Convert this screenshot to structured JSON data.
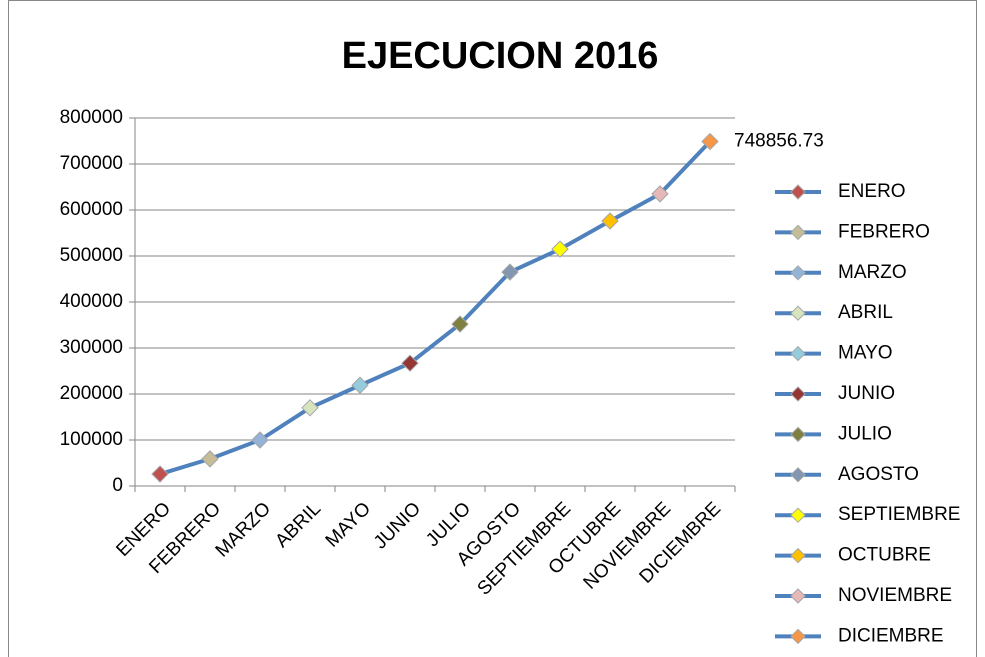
{
  "chart_data": {
    "type": "line",
    "title": "EJECUCION 2016",
    "categories": [
      "ENERO",
      "FEBRERO",
      "MARZO",
      "ABRIL",
      "MAYO",
      "JUNIO",
      "JULIO",
      "AGOSTO",
      "SEPTIEMBRE",
      "OCTUBRE",
      "NOVIEMBRE",
      "DICIEMBRE"
    ],
    "series": [
      {
        "color": "#4f81bd",
        "values": [
          26000,
          59000,
          100000,
          170000,
          219000,
          267000,
          352000,
          465000,
          515000,
          576000,
          635000,
          748856.73
        ],
        "value_labels": [
          null,
          null,
          null,
          null,
          null,
          null,
          null,
          null,
          null,
          null,
          null,
          "748856.73"
        ],
        "point_colors": [
          "#c0504d",
          "#c4bd97",
          "#95b3d7",
          "#d7e4bd",
          "#93cddd",
          "#943634",
          "#7f7f3f",
          "#8497b0",
          "#ffff00",
          "#ffc000",
          "#e6b9b8",
          "#f79646"
        ]
      }
    ],
    "ylim": [
      0,
      800000
    ],
    "yticks": [
      0,
      100000,
      200000,
      300000,
      400000,
      500000,
      600000,
      700000,
      800000
    ],
    "grid": true,
    "legend": "right"
  }
}
